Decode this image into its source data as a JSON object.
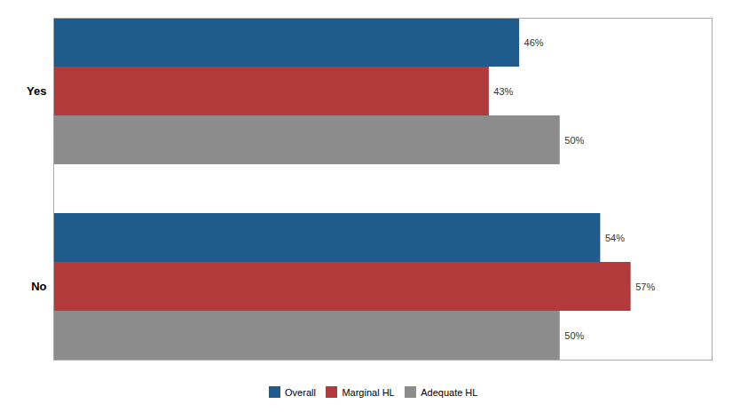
{
  "chart_data": {
    "type": "bar",
    "orientation": "horizontal",
    "categories": [
      "Yes",
      "No"
    ],
    "series": [
      {
        "name": "Overall",
        "color": "#1F5B8B",
        "values": [
          46,
          54
        ],
        "value_labels": [
          "46%",
          "54%"
        ]
      },
      {
        "name": "Marginal HL",
        "color": "#B23A3A",
        "values": [
          43,
          57
        ],
        "value_labels": [
          "43%",
          "57%"
        ]
      },
      {
        "name": "Adequate HL",
        "color": "#8C8C8C",
        "values": [
          50,
          50
        ],
        "value_labels": [
          "50%",
          "50%"
        ]
      }
    ],
    "xlim": [
      0,
      65
    ],
    "tick_labels": "y",
    "data_labels": true,
    "legend": "bottom",
    "grid": false
  }
}
